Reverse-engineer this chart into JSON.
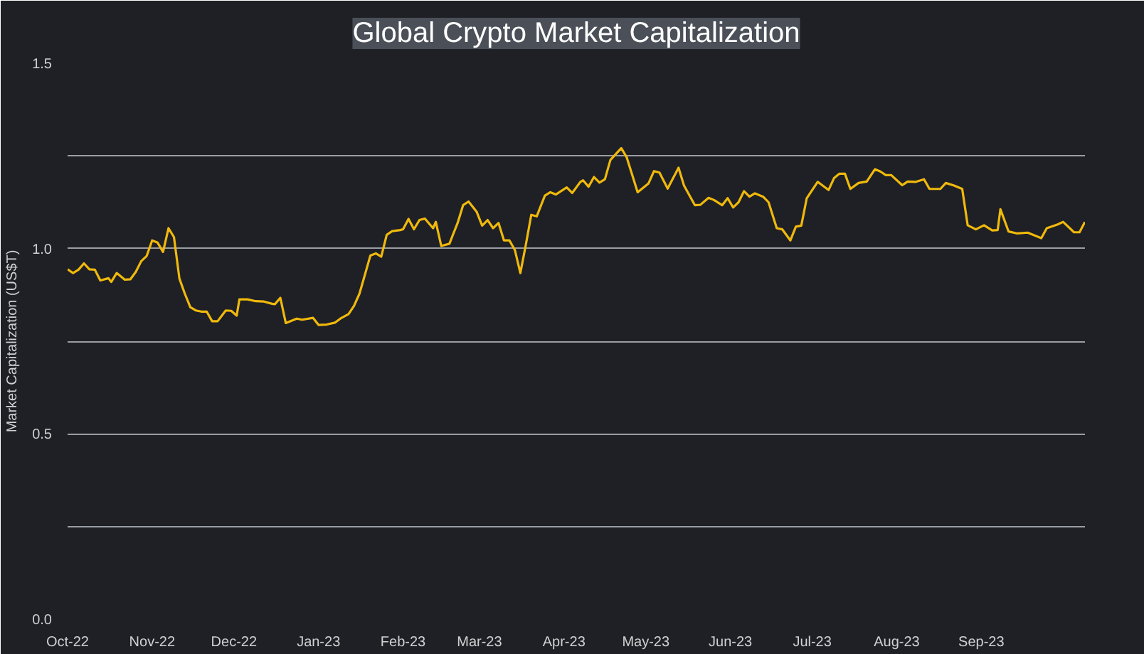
{
  "chart_data": {
    "type": "line",
    "title": "Global Crypto Market Capitalization",
    "ylabel": "Market Capitalization (US$T)",
    "xlim": [
      "2022-10-01",
      "2023-10-09"
    ],
    "xticks": [
      {
        "value": "2022-10-01",
        "label": "Oct-22"
      },
      {
        "value": "2022-11-01",
        "label": "Nov-22"
      },
      {
        "value": "2022-12-01",
        "label": "Dec-22"
      },
      {
        "value": "2023-01-01",
        "label": "Jan-23"
      },
      {
        "value": "2023-02-01",
        "label": "Feb-23"
      },
      {
        "value": "2023-03-01",
        "label": "Mar-23"
      },
      {
        "value": "2023-04-01",
        "label": "Apr-23"
      },
      {
        "value": "2023-05-01",
        "label": "May-23"
      },
      {
        "value": "2023-06-01",
        "label": "Jun-23"
      },
      {
        "value": "2023-07-01",
        "label": "Jul-23"
      },
      {
        "value": "2023-08-01",
        "label": "Aug-23"
      },
      {
        "value": "2023-09-01",
        "label": "Sep-23"
      }
    ],
    "ylim": [
      0,
      1.5
    ],
    "yticks": [
      {
        "value": 0,
        "label": "0.0"
      },
      {
        "value": 0.25,
        "label": null
      },
      0.5,
      {
        "value": 0.75,
        "label": null
      },
      {
        "value": 1,
        "label": "1.0"
      },
      {
        "value": 1.25,
        "label": null
      },
      1.5
    ],
    "grid": "y",
    "marker": "none",
    "line_style": "solid",
    "x": [
      "2022-10-01",
      "2022-10-03",
      "2022-10-05",
      "2022-10-07",
      "2022-10-09",
      "2022-10-11",
      "2022-10-13",
      "2022-10-16",
      "2022-10-17",
      "2022-10-19",
      "2022-10-22",
      "2022-10-24",
      "2022-10-26",
      "2022-10-28",
      "2022-10-30",
      "2022-11-01",
      "2022-11-03",
      "2022-11-05",
      "2022-11-07",
      "2022-11-09",
      "2022-11-11",
      "2022-11-13",
      "2022-11-15",
      "2022-11-17",
      "2022-11-19",
      "2022-11-21",
      "2022-11-23",
      "2022-11-25",
      "2022-11-28",
      "2022-11-30",
      "2022-12-02",
      "2022-12-03",
      "2022-12-06",
      "2022-12-09",
      "2022-12-12",
      "2022-12-15",
      "2022-12-16",
      "2022-12-18",
      "2022-12-20",
      "2022-12-24",
      "2022-12-26",
      "2022-12-30",
      "2023-01-01",
      "2023-01-04",
      "2023-01-07",
      "2023-01-09",
      "2023-01-12",
      "2023-01-14",
      "2023-01-16",
      "2023-01-18",
      "2023-01-20",
      "2023-01-22",
      "2023-01-24",
      "2023-01-26",
      "2023-01-28",
      "2023-01-31",
      "2023-02-01",
      "2023-02-03",
      "2023-02-05",
      "2023-02-07",
      "2023-02-09",
      "2023-02-12",
      "2023-02-13",
      "2023-02-15",
      "2023-02-18",
      "2023-02-19",
      "2023-02-21",
      "2023-02-23",
      "2023-02-25",
      "2023-02-28",
      "2023-03-02",
      "2023-03-04",
      "2023-03-06",
      "2023-03-08",
      "2023-03-10",
      "2023-03-12",
      "2023-03-14",
      "2023-03-16",
      "2023-03-18",
      "2023-03-20",
      "2023-03-22",
      "2023-03-25",
      "2023-03-27",
      "2023-03-29",
      "2023-04-02",
      "2023-04-04",
      "2023-04-07",
      "2023-04-08",
      "2023-04-10",
      "2023-04-12",
      "2023-04-14",
      "2023-04-16",
      "2023-04-18",
      "2023-04-22",
      "2023-04-24",
      "2023-04-28",
      "2023-05-02",
      "2023-05-04",
      "2023-05-06",
      "2023-05-09",
      "2023-05-13",
      "2023-05-15",
      "2023-05-19",
      "2023-05-21",
      "2023-05-24",
      "2023-05-26",
      "2023-05-29",
      "2023-05-31",
      "2023-06-02",
      "2023-06-04",
      "2023-06-06",
      "2023-06-08",
      "2023-06-10",
      "2023-06-13",
      "2023-06-15",
      "2023-06-18",
      "2023-06-20",
      "2023-06-23",
      "2023-06-25",
      "2023-06-27",
      "2023-06-29",
      "2023-07-03",
      "2023-07-07",
      "2023-07-09",
      "2023-07-11",
      "2023-07-13",
      "2023-07-15",
      "2023-07-18",
      "2023-07-21",
      "2023-07-24",
      "2023-07-26",
      "2023-07-28",
      "2023-07-30",
      "2023-08-03",
      "2023-08-05",
      "2023-08-08",
      "2023-08-11",
      "2023-08-13",
      "2023-08-17",
      "2023-08-19",
      "2023-08-22",
      "2023-08-25",
      "2023-08-27",
      "2023-08-30",
      "2023-09-02",
      "2023-09-05",
      "2023-09-07",
      "2023-09-08",
      "2023-09-11",
      "2023-09-14",
      "2023-09-18",
      "2023-09-23",
      "2023-09-25",
      "2023-09-29",
      "2023-10-01",
      "2023-10-05",
      "2023-10-07",
      "2023-10-09"
    ],
    "series": [
      {
        "color": "#f0b90b",
        "values": [
          0.944,
          0.934,
          0.943,
          0.96,
          0.944,
          0.943,
          0.914,
          0.92,
          0.91,
          0.934,
          0.916,
          0.917,
          0.937,
          0.966,
          0.98,
          1.022,
          1.016,
          0.991,
          1.055,
          1.031,
          0.919,
          0.878,
          0.842,
          0.833,
          0.83,
          0.83,
          0.804,
          0.804,
          0.833,
          0.832,
          0.819,
          0.863,
          0.863,
          0.858,
          0.857,
          0.851,
          0.85,
          0.867,
          0.799,
          0.811,
          0.808,
          0.813,
          0.794,
          0.795,
          0.8,
          0.811,
          0.823,
          0.845,
          0.878,
          0.929,
          0.981,
          0.987,
          0.978,
          1.037,
          1.047,
          1.05,
          1.052,
          1.08,
          1.052,
          1.077,
          1.081,
          1.055,
          1.072,
          1.007,
          1.013,
          1.032,
          1.069,
          1.117,
          1.127,
          1.099,
          1.062,
          1.077,
          1.055,
          1.069,
          1.022,
          1.022,
          0.996,
          0.934,
          1.01,
          1.091,
          1.087,
          1.143,
          1.152,
          1.146,
          1.165,
          1.15,
          1.18,
          1.184,
          1.167,
          1.193,
          1.178,
          1.187,
          1.239,
          1.271,
          1.246,
          1.152,
          1.176,
          1.209,
          1.205,
          1.162,
          1.218,
          1.17,
          1.117,
          1.118,
          1.137,
          1.131,
          1.117,
          1.136,
          1.111,
          1.125,
          1.155,
          1.14,
          1.149,
          1.14,
          1.125,
          1.055,
          1.052,
          1.022,
          1.059,
          1.062,
          1.136,
          1.18,
          1.158,
          1.19,
          1.202,
          1.202,
          1.161,
          1.177,
          1.181,
          1.214,
          1.208,
          1.198,
          1.198,
          1.171,
          1.181,
          1.18,
          1.187,
          1.161,
          1.161,
          1.177,
          1.17,
          1.161,
          1.063,
          1.052,
          1.063,
          1.049,
          1.05,
          1.106,
          1.046,
          1.041,
          1.043,
          1.028,
          1.055,
          1.065,
          1.072,
          1.044,
          1.044,
          1.072
        ]
      }
    ]
  }
}
